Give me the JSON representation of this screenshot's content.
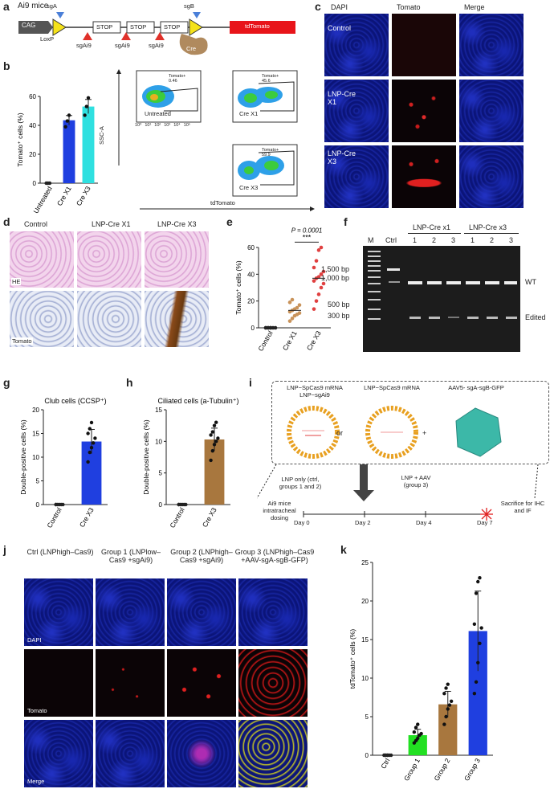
{
  "panels": {
    "a": "a",
    "b": "b",
    "c": "c",
    "d": "d",
    "e": "e",
    "f": "f",
    "g": "g",
    "h": "h",
    "i": "i",
    "j": "j",
    "k": "k"
  },
  "panel_a": {
    "title": "Ai9 mice",
    "cag": "CAG",
    "loxp": "LoxP",
    "sgA": "sgA",
    "sgB": "sgB",
    "stop": "STOP",
    "sgAi9": "sgAi9",
    "cre": "Cre",
    "tdtomato": "tdTomato"
  },
  "panel_b": {
    "facs_labels": [
      "Untreated",
      "Cre X1",
      "Cre X3"
    ],
    "gate_labels": [
      "Tomato+ 0.46",
      "Tomato+ 45.6",
      "Tomato+ 59.9"
    ],
    "y_axis": "SSC-A",
    "x_axis": "tdTomato",
    "ticks": [
      "10⁰",
      "10¹",
      "10²",
      "10³",
      "10⁴",
      "10⁵"
    ]
  },
  "panel_c": {
    "cols": [
      "DAPI",
      "Tomato",
      "Merge"
    ],
    "rows": [
      "Control",
      "LNP-Cre X1",
      "LNP-Cre X3"
    ]
  },
  "panel_d": {
    "cols": [
      "Control",
      "LNP-Cre X1",
      "LNP-Cre X3"
    ],
    "rows": [
      "HE",
      "Tomato"
    ]
  },
  "panel_f": {
    "m": "M",
    "ctrl": "Ctrl",
    "group1": "LNP-Cre x1",
    "group2": "LNP-Cre x3",
    "lanes": [
      "1",
      "2",
      "3",
      "1",
      "2",
      "3"
    ],
    "sizes": [
      "1,500 bp",
      "1,000 bp",
      "500 bp",
      "300 bp"
    ],
    "wt": "WT",
    "edited": "Edited"
  },
  "panel_i": {
    "lnp1": "LNP−SpCas9 mRNA LNP−sgAi9",
    "lnp2": "LNP−SpCas9 mRNA",
    "or": "or",
    "plus": "+",
    "aav": "AAV5- sgA-sgB-GFP",
    "lnp_only": "LNP only (ctrl, groups 1 and 2)",
    "lnp_aav": "LNP + AAV (group 3)",
    "start": "Ai9 mice intratracheal dosing",
    "end": "Sacrifice for IHC and IF",
    "days": [
      "Day 0",
      "Day 2",
      "Day 4",
      "Day 7"
    ]
  },
  "panel_j": {
    "cols": [
      "Ctrl (LNPhigh–Cas9)",
      "Group 1 (LNPlow–Cas9 +sgAi9)",
      "Group 2 (LNPhigh–Cas9 +sgAi9)",
      "Group 3 (LNPhigh–Cas9 +AAV-sgA-sgB-GFP)"
    ],
    "rows": [
      "DAPI",
      "Tomato",
      "Merge"
    ]
  },
  "chart_data": [
    {
      "id": "b",
      "type": "bar",
      "categories": [
        "Untreated",
        "Cre X1",
        "Cre X3"
      ],
      "values": [
        0,
        43.5,
        53
      ],
      "points": [
        [
          0,
          0,
          0
        ],
        [
          39,
          43,
          47
        ],
        [
          47,
          53,
          59
        ]
      ],
      "colors": [
        "#1f2d9e",
        "#1f3fe0",
        "#2fe0e0"
      ],
      "ylabel": "Tomato⁺ cells (%)",
      "ylim": [
        0,
        60
      ],
      "yticks": [
        0,
        20,
        40,
        60
      ]
    },
    {
      "id": "e",
      "type": "scatter",
      "categories": [
        "Control",
        "Cre X1",
        "Cre X3"
      ],
      "points": [
        [
          0,
          0,
          0,
          0,
          0,
          0,
          0,
          0
        ],
        [
          5,
          7,
          9,
          10,
          11,
          12,
          13,
          14,
          15,
          17,
          19,
          21
        ],
        [
          14,
          20,
          25,
          30,
          33,
          35,
          37,
          38,
          40,
          42,
          45,
          50,
          58,
          60
        ]
      ],
      "means": [
        0,
        13,
        37
      ],
      "colors": [
        "#222222",
        "#c9935a",
        "#e04040"
      ],
      "ylabel": "Tomato⁺ cells (%)",
      "ylim": [
        0,
        60
      ],
      "yticks": [
        0,
        20,
        40,
        60
      ],
      "annotation": "P = 0.0001",
      "stars": "***"
    },
    {
      "id": "g",
      "type": "bar",
      "title": "Club cells (CCSP⁺)",
      "categories": [
        "Control",
        "Cre X3"
      ],
      "values": [
        0,
        13.3
      ],
      "points": [
        [
          0,
          0,
          0,
          0,
          0,
          0
        ],
        [
          9,
          11,
          12,
          13,
          14,
          15,
          16,
          17.3
        ]
      ],
      "colors": [
        "#222222",
        "#1f3fe0"
      ],
      "ylabel": "Double-positive cells (%)",
      "ylim": [
        0,
        20
      ],
      "yticks": [
        0,
        5,
        10,
        15,
        20
      ]
    },
    {
      "id": "h",
      "type": "bar",
      "title": "Ciliated cells (a-Tubulin⁺)",
      "categories": [
        "Control",
        "Cre X3"
      ],
      "values": [
        0,
        10.3
      ],
      "points": [
        [
          0,
          0,
          0,
          0,
          0,
          0
        ],
        [
          7,
          8.5,
          9.5,
          10,
          10.5,
          11,
          11.5,
          12.5,
          13
        ]
      ],
      "colors": [
        "#222222",
        "#a8773e"
      ],
      "ylabel": "Double-positive cells (%)",
      "ylim": [
        0,
        15
      ],
      "yticks": [
        0,
        5,
        10,
        15
      ]
    },
    {
      "id": "k",
      "type": "bar",
      "categories": [
        "Ctrl",
        "Group 1",
        "Group 2",
        "Group 3"
      ],
      "values": [
        0,
        2.6,
        6.6,
        16.1
      ],
      "points": [
        [
          0,
          0,
          0,
          0,
          0,
          0,
          0,
          0
        ],
        [
          1.6,
          1.9,
          2.2,
          2.6,
          2.8,
          3.0,
          3.6,
          4.0
        ],
        [
          4.0,
          5.0,
          6.0,
          6.5,
          7.0,
          8.0,
          8.7,
          9.2
        ],
        [
          8.0,
          9.5,
          12.0,
          14.5,
          16.5,
          17.0,
          21.0,
          22.5,
          23.0
        ]
      ],
      "colors": [
        "#222222",
        "#22e022",
        "#a8773e",
        "#1f3fe0"
      ],
      "ylabel": "tdTomato⁺ cells (%)",
      "ylim": [
        0,
        25
      ],
      "yticks": [
        0,
        5,
        10,
        15,
        20,
        25
      ]
    }
  ]
}
